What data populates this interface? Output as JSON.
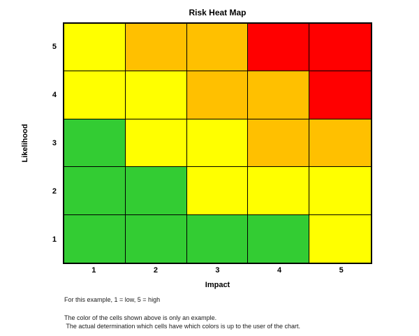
{
  "title": "Risk Heat Map",
  "chart_data": {
    "type": "heatmap",
    "title": "Risk Heat Map",
    "xlabel": "Impact",
    "ylabel": "Likelihood",
    "x_ticks": [
      "1",
      "2",
      "3",
      "4",
      "5"
    ],
    "y_ticks": [
      "5",
      "4",
      "3",
      "2",
      "1"
    ],
    "cell_colors_by_row": [
      [
        "yellow",
        "orange",
        "orange",
        "red",
        "red"
      ],
      [
        "yellow",
        "yellow",
        "orange",
        "orange",
        "red"
      ],
      [
        "green",
        "yellow",
        "yellow",
        "orange",
        "orange"
      ],
      [
        "green",
        "green",
        "yellow",
        "yellow",
        "yellow"
      ],
      [
        "green",
        "green",
        "green",
        "green",
        "yellow"
      ]
    ],
    "palette": {
      "green": "#33CC33",
      "yellow": "#FFFF00",
      "orange": "#FFC000",
      "red": "#FF0000"
    },
    "border_color": "#000000",
    "legend": "none",
    "grid": true
  },
  "notes": {
    "line1": "For this example, 1 = low, 5 = high",
    "line2": "The color of the cells shown above is only an example.",
    "line3": " The actual determination which cells have which colors is up to the user of the chart."
  }
}
